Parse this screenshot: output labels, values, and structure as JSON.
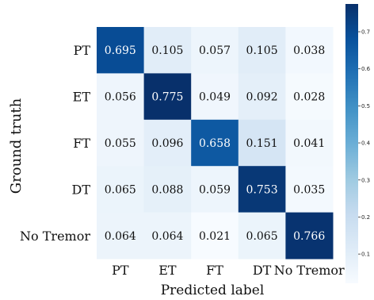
{
  "chart_data": {
    "type": "heatmap",
    "title": "",
    "xlabel": "Predicted label",
    "ylabel": "Ground truth",
    "x_categories": [
      "PT",
      "ET",
      "FT",
      "DT",
      "No Tremor"
    ],
    "y_categories": [
      "PT",
      "ET",
      "FT",
      "DT",
      "No Tremor"
    ],
    "values": [
      [
        0.695,
        0.105,
        0.057,
        0.105,
        0.038
      ],
      [
        0.056,
        0.775,
        0.049,
        0.092,
        0.028
      ],
      [
        0.055,
        0.096,
        0.658,
        0.151,
        0.041
      ],
      [
        0.065,
        0.088,
        0.059,
        0.753,
        0.035
      ],
      [
        0.064,
        0.064,
        0.021,
        0.065,
        0.766
      ]
    ],
    "cell_labels": [
      [
        "0.695",
        "0.105",
        "0.057",
        "0.105",
        "0.038"
      ],
      [
        "0.056",
        "0.775",
        "0.049",
        "0.092",
        "0.028"
      ],
      [
        "0.055",
        "0.096",
        "0.658",
        "0.151",
        "0.041"
      ],
      [
        "0.065",
        "0.088",
        "0.059",
        "0.753",
        "0.035"
      ],
      [
        "0.064",
        "0.064",
        "0.021",
        "0.065",
        "0.766"
      ]
    ],
    "colormap": "Blues",
    "color_range": [
      0.021,
      0.775
    ],
    "colorbar": {
      "ticks": [
        0.1,
        0.2,
        0.3,
        0.4,
        0.5,
        0.6,
        0.7
      ],
      "tick_labels": [
        "0.1",
        "0.2",
        "0.3",
        "0.4",
        "0.5",
        "0.6",
        "0.7"
      ]
    },
    "colors": {
      "light": "#f7fbff",
      "dark": "#08306b"
    }
  }
}
